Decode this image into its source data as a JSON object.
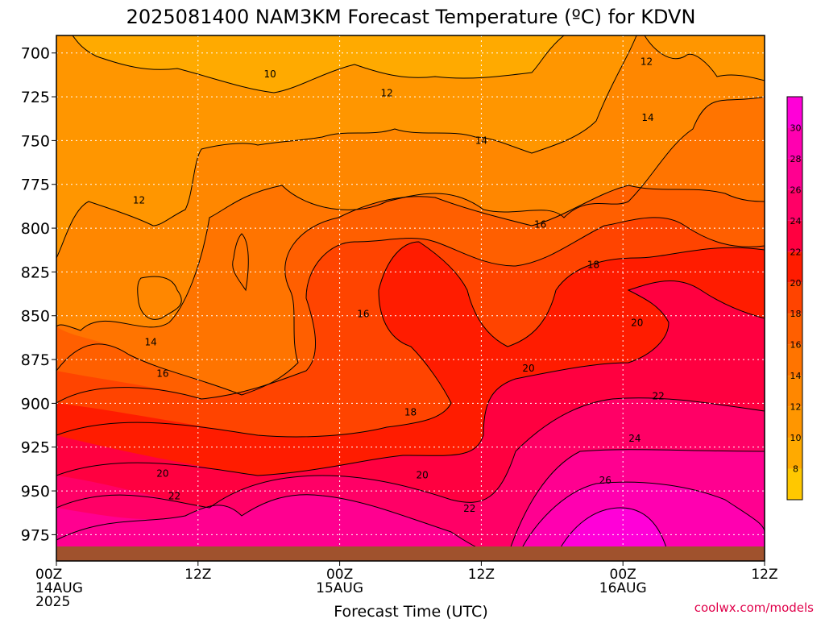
{
  "chart_data": {
    "type": "heatmap",
    "title": "2025081400 NAM3KM Forecast Temperature (ºC) for KDVN",
    "xlabel": "Forecast Time (UTC)",
    "ylabel": "",
    "x_ticks": [
      {
        "hour": 0,
        "lines": [
          "00Z",
          "14AUG",
          "2025"
        ]
      },
      {
        "hour": 12,
        "lines": [
          "12Z"
        ]
      },
      {
        "hour": 24,
        "lines": [
          "00Z",
          "15AUG"
        ]
      },
      {
        "hour": 36,
        "lines": [
          "12Z"
        ]
      },
      {
        "hour": 48,
        "lines": [
          "00Z",
          "16AUG"
        ]
      },
      {
        "hour": 60,
        "lines": [
          "12Z"
        ]
      }
    ],
    "x_range": [
      0,
      60
    ],
    "y_ticks": [
      700,
      725,
      750,
      775,
      800,
      825,
      850,
      875,
      900,
      925,
      950,
      975
    ],
    "y_range_hpa": [
      690,
      990
    ],
    "grid": true,
    "colorbar": {
      "position": "right",
      "levels": [
        6,
        8,
        10,
        12,
        14,
        16,
        18,
        20,
        22,
        24,
        26,
        28,
        30,
        32
      ],
      "tick_labels": [
        8,
        10,
        12,
        14,
        16,
        18,
        20,
        22,
        24,
        26,
        28,
        30
      ],
      "colors": [
        "#ffc800",
        "#ffaa00",
        "#ff9600",
        "#ff8700",
        "#ff7400",
        "#ff5f00",
        "#ff4400",
        "#ff1c00",
        "#ff0040",
        "#ff0066",
        "#ff0090",
        "#ff00b0",
        "#ff00d8"
      ]
    },
    "contour_labels": [
      {
        "text": "10",
        "hour": 18.1,
        "hpa": 712
      },
      {
        "text": "12",
        "hour": 28.0,
        "hpa": 723
      },
      {
        "text": "12",
        "hour": 50.0,
        "hpa": 705
      },
      {
        "text": "14",
        "hour": 50.1,
        "hpa": 737
      },
      {
        "text": "14",
        "hour": 36.0,
        "hpa": 750
      },
      {
        "text": "12",
        "hour": 7.0,
        "hpa": 784
      },
      {
        "text": "16",
        "hour": 41.0,
        "hpa": 798
      },
      {
        "text": "18",
        "hour": 45.5,
        "hpa": 821
      },
      {
        "text": "16",
        "hour": 26.0,
        "hpa": 849
      },
      {
        "text": "20",
        "hour": 49.2,
        "hpa": 854
      },
      {
        "text": "14",
        "hour": 8.0,
        "hpa": 865
      },
      {
        "text": "16",
        "hour": 9.0,
        "hpa": 883
      },
      {
        "text": "20",
        "hour": 40.0,
        "hpa": 880
      },
      {
        "text": "22",
        "hour": 51.0,
        "hpa": 896
      },
      {
        "text": "18",
        "hour": 30.0,
        "hpa": 905
      },
      {
        "text": "24",
        "hour": 49.0,
        "hpa": 920
      },
      {
        "text": "20",
        "hour": 9.0,
        "hpa": 940
      },
      {
        "text": "20",
        "hour": 31.0,
        "hpa": 941
      },
      {
        "text": "26",
        "hour": 46.5,
        "hpa": 944
      },
      {
        "text": "22",
        "hour": 10.0,
        "hpa": 953
      },
      {
        "text": "22",
        "hour": 35.0,
        "hpa": 960
      }
    ]
  },
  "credit": "coolwx.com/models",
  "colors": {
    "ground": "#a0522d",
    "credit": "#e0004a"
  }
}
